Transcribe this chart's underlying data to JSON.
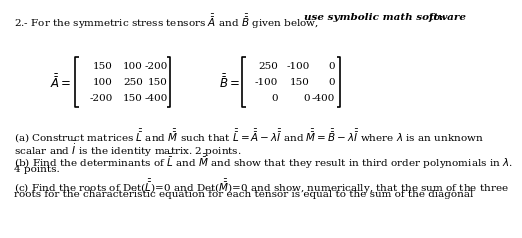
{
  "matrix_A": [
    [
      150,
      100,
      -200
    ],
    [
      100,
      250,
      150
    ],
    [
      -200,
      150,
      -400
    ]
  ],
  "matrix_B": [
    [
      250,
      -100,
      0
    ],
    [
      -100,
      150,
      0
    ],
    [
      0,
      0,
      -400
    ]
  ],
  "bg_color": "#ffffff",
  "text_color": "#000000",
  "font_size": 7.5,
  "title1": "2.- For the symmetric stress tensors $\\bar{\\bar{A}}$ and $\\bar{\\bar{B}}$ given below, ",
  "title2": "use symbolic math software",
  "title3": " to:",
  "part_a1": "(a) Construct matrices $\\bar{\\bar{L}}$ and $\\bar{\\bar{M}}$ such that $\\bar{\\bar{L}}=\\bar{\\bar{A}}-\\lambda\\bar{\\bar{I}}$ and $\\bar{\\bar{M}}=\\bar{\\bar{B}}-\\lambda\\bar{\\bar{I}}$ where $\\lambda$ is an unknown",
  "part_a2": "scalar and $\\bar{\\dot{I}}$ is the identity matrix. 2 points.",
  "part_b1": "(b) Find the determinants of $\\bar{\\bar{L}}$ and $\\bar{\\bar{M}}$ and show that they result in third order polynomials in $\\lambda$.",
  "part_b2": "4 points.",
  "part_c1": "(c) Find the roots of Det($\\bar{\\bar{L}}$)=0 and Det($\\bar{\\bar{M}}$)=0 and show, numerically, that the sum of the three",
  "part_c2": "roots for the characteristic equation for each tensor is equal to the sum of the diagonal"
}
